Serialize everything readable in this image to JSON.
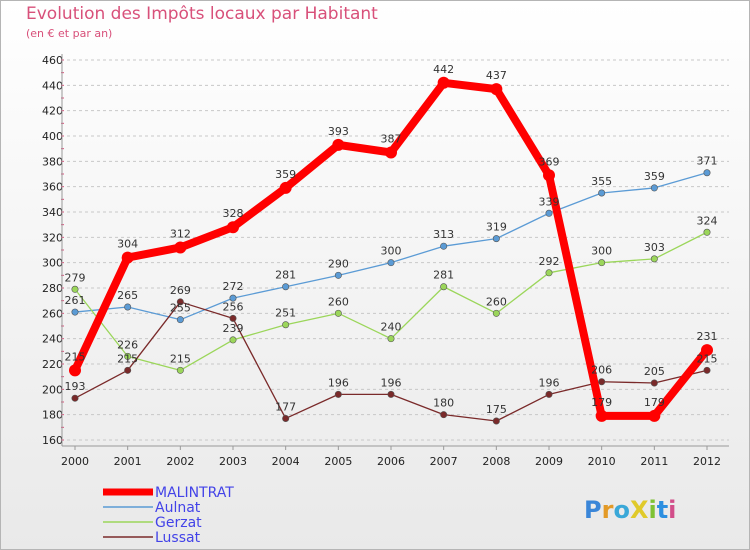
{
  "title": "Evolution des Impôts locaux par Habitant",
  "subtitle": "(en € et par an)",
  "logo": {
    "text": "ProXiti",
    "letter_colors": [
      "#3a86d8",
      "#e39a27",
      "#3aa8d8",
      "#e0ca2a",
      "#7ec234",
      "#2c8fe0",
      "#d24e8a"
    ]
  },
  "chart_data": {
    "type": "line",
    "x": [
      "2000",
      "2001",
      "2002",
      "2003",
      "2004",
      "2005",
      "2006",
      "2007",
      "2008",
      "2009",
      "2010",
      "2011",
      "2012"
    ],
    "ylim": [
      160,
      460
    ],
    "yticks": [
      160,
      180,
      200,
      220,
      240,
      260,
      280,
      300,
      320,
      340,
      360,
      380,
      400,
      420,
      440,
      460
    ],
    "grid": "horizontal dashed",
    "legend_position": "bottom-left",
    "series": [
      {
        "name": "Aulnat",
        "color": "#5b9bd5",
        "values": [
          261,
          265,
          255,
          272,
          281,
          290,
          300,
          313,
          319,
          339,
          355,
          359,
          371
        ]
      },
      {
        "name": "Gerzat",
        "color": "#9bd65a",
        "values": [
          279,
          226,
          215,
          239,
          251,
          260,
          240,
          281,
          260,
          292,
          300,
          303,
          324
        ]
      },
      {
        "name": "Lussat",
        "color": "#7a2a2a",
        "values": [
          193,
          215,
          269,
          256,
          177,
          196,
          196,
          180,
          175,
          196,
          206,
          205,
          215
        ]
      },
      {
        "name": "MALINTRAT",
        "color": "#ff0000",
        "values": [
          215,
          304,
          312,
          328,
          359,
          393,
          387,
          442,
          437,
          369,
          179,
          179,
          231
        ]
      }
    ],
    "legend_order": [
      "MALINTRAT",
      "Aulnat",
      "Gerzat",
      "Lussat"
    ]
  }
}
